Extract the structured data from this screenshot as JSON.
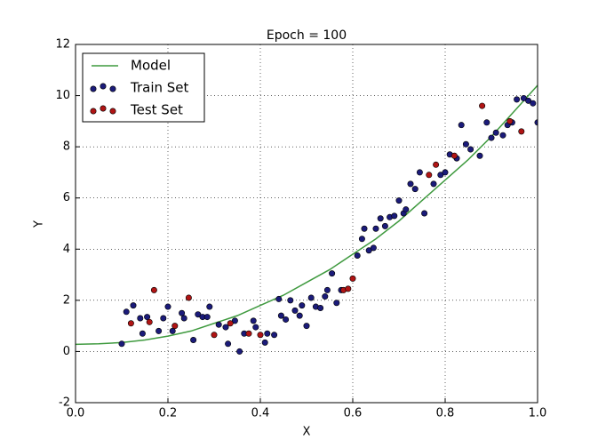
{
  "chart_data": {
    "type": "scatter",
    "title": "Epoch = 100",
    "x_label": "X",
    "y_label": "Y",
    "xlim": [
      0,
      1
    ],
    "ylim": [
      -2,
      12
    ],
    "xticks": [
      {
        "value": 0,
        "label": "0.0"
      },
      0.2,
      0.4,
      0.6,
      0.8,
      {
        "value": 1,
        "label": "1.0"
      }
    ],
    "yticks": [
      -2,
      0,
      2,
      4,
      6,
      8,
      10,
      12
    ],
    "grid": true,
    "legend": "upper left",
    "series": [
      {
        "name": "Model",
        "type": "line",
        "color": "#3f9a3f",
        "x": [
          0,
          0.05,
          0.1,
          0.15,
          0.2,
          0.25,
          0.3,
          0.35,
          0.4,
          0.45,
          0.5,
          0.55,
          0.6,
          0.65,
          0.7,
          0.75,
          0.8,
          0.85,
          0.9,
          0.95,
          1
        ],
        "values": [
          0.28,
          0.3,
          0.35,
          0.45,
          0.6,
          0.8,
          1.1,
          1.4,
          1.8,
          2.2,
          2.7,
          3.2,
          3.8,
          4.4,
          5.1,
          5.9,
          6.7,
          7.5,
          8.4,
          9.4,
          10.4
        ]
      },
      {
        "name": "Train Set",
        "type": "scatter",
        "color": "#1b1b7a",
        "x": [
          0.1,
          0.11,
          0.125,
          0.14,
          0.145,
          0.155,
          0.18,
          0.19,
          0.2,
          0.21,
          0.23,
          0.235,
          0.255,
          0.265,
          0.275,
          0.285,
          0.29,
          0.31,
          0.325,
          0.33,
          0.345,
          0.355,
          0.365,
          0.385,
          0.39,
          0.41,
          0.415,
          0.43,
          0.44,
          0.445,
          0.455,
          0.465,
          0.475,
          0.485,
          0.49,
          0.5,
          0.51,
          0.52,
          0.53,
          0.54,
          0.545,
          0.555,
          0.565,
          0.575,
          0.61,
          0.62,
          0.625,
          0.635,
          0.645,
          0.65,
          0.66,
          0.67,
          0.68,
          0.69,
          0.7,
          0.71,
          0.715,
          0.725,
          0.735,
          0.745,
          0.755,
          0.775,
          0.79,
          0.8,
          0.81,
          0.825,
          0.835,
          0.845,
          0.855,
          0.875,
          0.89,
          0.9,
          0.91,
          0.925,
          0.935,
          0.945,
          0.955,
          0.97,
          0.98,
          0.99,
          1.0
        ],
        "values": [
          0.3,
          1.55,
          1.8,
          1.3,
          0.7,
          1.35,
          0.8,
          1.3,
          1.75,
          0.8,
          1.5,
          1.3,
          0.45,
          1.45,
          1.35,
          1.35,
          1.75,
          1.05,
          0.95,
          0.3,
          1.2,
          0.0,
          0.7,
          1.2,
          0.95,
          0.35,
          0.7,
          0.65,
          2.05,
          1.4,
          1.25,
          2.0,
          1.6,
          1.4,
          1.8,
          1.0,
          2.1,
          1.75,
          1.7,
          2.15,
          2.4,
          3.05,
          1.9,
          2.4,
          3.75,
          4.4,
          4.8,
          3.95,
          4.05,
          4.8,
          5.2,
          4.9,
          5.25,
          5.3,
          5.9,
          5.4,
          5.55,
          6.55,
          6.35,
          7.0,
          5.4,
          6.55,
          6.9,
          7.0,
          7.7,
          7.55,
          8.85,
          8.1,
          7.9,
          7.65,
          8.95,
          8.35,
          8.55,
          8.45,
          8.85,
          8.95,
          9.85,
          9.9,
          9.8,
          9.7,
          8.95
        ]
      },
      {
        "name": "Test Set",
        "type": "scatter",
        "color": "#b01414",
        "x": [
          0.12,
          0.16,
          0.17,
          0.215,
          0.245,
          0.3,
          0.335,
          0.375,
          0.4,
          0.58,
          0.59,
          0.6,
          0.765,
          0.78,
          0.82,
          0.88,
          0.94,
          0.965
        ],
        "values": [
          1.1,
          1.15,
          2.4,
          1.0,
          2.1,
          0.65,
          1.1,
          0.7,
          0.65,
          2.4,
          2.45,
          2.85,
          6.9,
          7.3,
          7.65,
          9.6,
          9.0,
          8.6
        ]
      }
    ]
  }
}
